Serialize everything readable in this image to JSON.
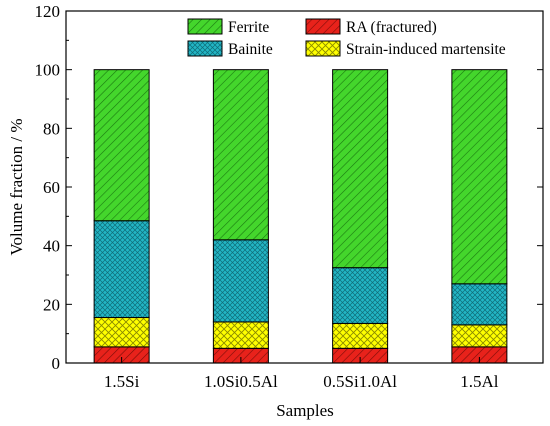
{
  "chart_data": {
    "type": "bar",
    "stacked": true,
    "categories": [
      "1.5Si",
      "1.0Si0.5Al",
      "0.5Si1.0Al",
      "1.5Al"
    ],
    "series": [
      {
        "name": "RA (fractured)",
        "color": "#e8221b",
        "pattern": "diagonal-hatch",
        "values": [
          5.5,
          5,
          5,
          5.5
        ]
      },
      {
        "name": "Strain-induced martensite",
        "color": "#ffff00",
        "pattern": "crosshatch",
        "values": [
          10,
          9,
          8.5,
          7.5
        ]
      },
      {
        "name": "Bainite",
        "color": "#22b5c4",
        "pattern": "dotted-grid",
        "values": [
          33,
          28,
          19,
          14
        ]
      },
      {
        "name": "Ferrite",
        "color": "#44d62c",
        "pattern": "diagonal-hatch",
        "values": [
          51.5,
          58,
          67.5,
          73
        ]
      }
    ],
    "legend_order": [
      "Ferrite",
      "RA (fractured)",
      "Bainite",
      "Strain-induced martensite"
    ],
    "legend_position": "top",
    "xlabel": "Samples",
    "ylabel": "Volume fraction / %",
    "ylim": [
      0,
      120
    ],
    "yticks": [
      0,
      20,
      40,
      60,
      80,
      100,
      120
    ],
    "grid": false
  }
}
